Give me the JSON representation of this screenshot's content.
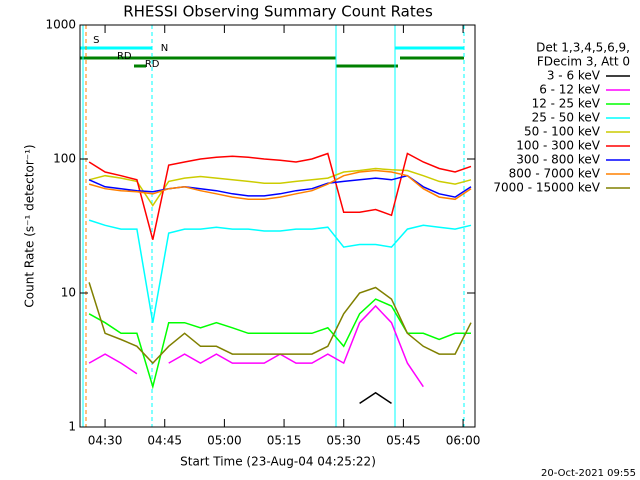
{
  "chart_data": {
    "type": "line",
    "title": "RHESSI Observing Summary Count Rates",
    "x_label": "Start Time (23-Aug-04 04:25:22)",
    "y_label": "Count Rate (s⁻¹ detector⁻¹)",
    "legend_header": [
      "Det 1,3,4,5,6,9,",
      "FDecim 3, Att 0"
    ],
    "footer": "20-Oct-2021 09:55",
    "log_y": true,
    "xlim": [
      "04:23:42",
      "06:03:00"
    ],
    "xticks": [
      "04:30",
      "04:45",
      "05:00",
      "05:15",
      "05:30",
      "05:45",
      "06:00"
    ],
    "ylim": [
      1,
      1000
    ],
    "yticks": [
      1,
      10,
      100,
      1000
    ],
    "annotations": [
      {
        "text": "S",
        "x": "04:27",
        "color": "#ff8000"
      },
      {
        "text": "N",
        "x": "04:44",
        "color": "#00ffff"
      },
      {
        "text": "RD",
        "x": "04:33",
        "color": "#008000"
      },
      {
        "text": "RD",
        "x": "04:40",
        "color": "#008000"
      }
    ],
    "x": [
      "04:26",
      "04:30",
      "04:34",
      "04:38",
      "04:42",
      "04:46",
      "04:50",
      "04:54",
      "04:58",
      "05:02",
      "05:06",
      "05:10",
      "05:14",
      "05:18",
      "05:22",
      "05:26",
      "05:30",
      "05:34",
      "05:38",
      "05:42",
      "05:46",
      "05:50",
      "05:54",
      "05:58",
      "06:02"
    ],
    "series": [
      {
        "name": "3 - 6 keV",
        "color": "#000000",
        "values": [
          null,
          null,
          null,
          null,
          null,
          null,
          null,
          null,
          null,
          null,
          null,
          null,
          null,
          null,
          null,
          null,
          null,
          1.5,
          1.8,
          1.5,
          null,
          null,
          null,
          null,
          null
        ]
      },
      {
        "name": "6 - 12 keV",
        "color": "#ff00ff",
        "values": [
          3,
          3.5,
          3,
          2.5,
          null,
          3,
          3.5,
          3,
          3.5,
          3,
          3,
          3,
          3.5,
          3,
          3,
          3.5,
          3,
          6,
          8,
          6,
          3,
          2,
          null,
          null,
          null
        ]
      },
      {
        "name": "12 - 25 keV",
        "color": "#00ff00",
        "values": [
          7,
          6,
          5,
          5,
          2,
          6,
          6,
          5.5,
          6,
          5.5,
          5,
          5,
          5,
          5,
          5,
          5.5,
          4,
          7,
          9,
          8,
          5,
          5,
          4.5,
          5,
          5
        ]
      },
      {
        "name": "25 - 50 keV",
        "color": "#00ffff",
        "values": [
          35,
          32,
          30,
          30,
          6,
          28,
          30,
          30,
          31,
          30,
          30,
          29,
          29,
          30,
          30,
          31,
          22,
          23,
          23,
          22,
          30,
          32,
          31,
          30,
          32
        ]
      },
      {
        "name": "50 - 100 keV",
        "color": "#cccc00",
        "values": [
          70,
          75,
          72,
          68,
          45,
          68,
          72,
          74,
          72,
          70,
          68,
          66,
          66,
          68,
          70,
          72,
          80,
          82,
          85,
          83,
          82,
          75,
          68,
          65,
          70
        ]
      },
      {
        "name": "100 - 300 keV",
        "color": "#ff0000",
        "values": [
          95,
          80,
          75,
          70,
          25,
          90,
          95,
          100,
          103,
          105,
          103,
          100,
          98,
          95,
          100,
          110,
          40,
          40,
          42,
          38,
          110,
          95,
          85,
          80,
          88
        ]
      },
      {
        "name": "300 - 800 keV",
        "color": "#0000ff",
        "values": [
          70,
          62,
          60,
          58,
          57,
          60,
          62,
          60,
          58,
          55,
          53,
          53,
          55,
          58,
          60,
          66,
          68,
          70,
          72,
          70,
          75,
          62,
          55,
          52,
          62
        ]
      },
      {
        "name": "800 - 7000 keV",
        "color": "#ff8000",
        "values": [
          65,
          60,
          58,
          57,
          55,
          60,
          62,
          58,
          55,
          52,
          50,
          50,
          52,
          55,
          58,
          65,
          75,
          80,
          82,
          80,
          75,
          60,
          52,
          50,
          60
        ]
      },
      {
        "name": "7000 - 15000 keV",
        "color": "#808000",
        "values": [
          12,
          5,
          4.5,
          4,
          3,
          4,
          5,
          4,
          4,
          3.5,
          3.5,
          3.5,
          3.5,
          3.5,
          3.5,
          4,
          7,
          10,
          11,
          9,
          5,
          4,
          3.5,
          3.5,
          6
        ]
      }
    ]
  }
}
